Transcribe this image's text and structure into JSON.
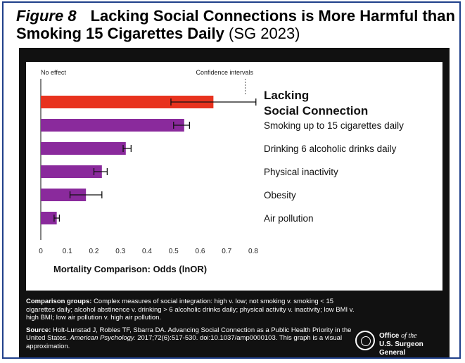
{
  "header": {
    "figure_label": "Figure 8",
    "title": "Lacking Social Connections is More Harmful than Smoking 15 Cigarettes Daily",
    "citation": "(SG 2023)"
  },
  "chart_data": {
    "type": "bar",
    "orientation": "horizontal",
    "categories": [
      "Lacking Social Connection",
      "Smoking up to 15 cigarettes daily",
      "Drinking 6 alcoholic drinks daily",
      "Physical inactivity",
      "Obesity",
      "Air pollution"
    ],
    "values": [
      0.65,
      0.54,
      0.32,
      0.23,
      0.17,
      0.06
    ],
    "error_low": [
      0.49,
      0.5,
      0.31,
      0.2,
      0.11,
      0.05
    ],
    "error_high": [
      0.81,
      0.56,
      0.34,
      0.25,
      0.23,
      0.07
    ],
    "colors": [
      "#e8321e",
      "#8a2a9c",
      "#8a2a9c",
      "#8a2a9c",
      "#8a2a9c",
      "#8a2a9c"
    ],
    "xlabel": "Mortality Comparison: Odds (lnOR)",
    "xlim": [
      0,
      0.8
    ],
    "xticks": [
      "0",
      "0.1",
      "0.2",
      "0.3",
      "0.4",
      "0.5",
      "0.6",
      "0.7",
      "0.8"
    ],
    "annotations": [
      "No effect",
      "Confidence intervals"
    ],
    "grid": false
  },
  "footer": {
    "comparison_label": "Comparison groups:",
    "comparison_text": "Complex measures of social integration: high v. low; not smoking v. smoking < 15 cigarettes daily; alcohol abstinence v. drinking > 6 alcoholic drinks daily; physical activity v. inactivity; low BMI v. high BMI; low air pollution v. high air pollution.",
    "source_label": "Source:",
    "source_text_1": "Holt-Lunstad J, Robles TF, Sbarra DA. Advancing Social Connection as a Public Health Priority in the United States.",
    "source_journal": "American Psychology.",
    "source_text_2": "2017;72(6):517-530. doi:10.1037/amp0000103. This graph is a visual approximation.",
    "office_line1": "Office",
    "office_of": "of the",
    "office_line2": "U.S. Surgeon General"
  }
}
